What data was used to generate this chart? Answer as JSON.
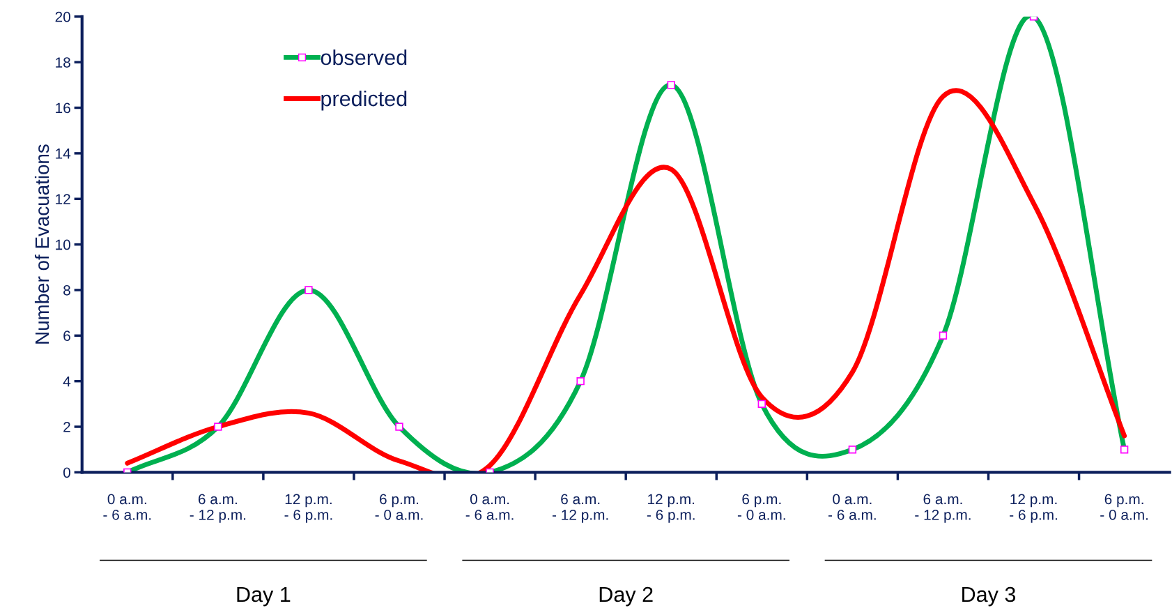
{
  "chart_data": {
    "type": "line",
    "ylabel": "Number of Evacuations",
    "categories": [
      "0 a.m.\n- 6 a.m.",
      "6 a.m.\n- 12 p.m.",
      "12 p.m.\n- 6 p.m.",
      "6 p.m.\n- 0 a.m.",
      "0 a.m.\n- 6 a.m.",
      "6 a.m.\n- 12 p.m.",
      "12 p.m.\n- 6 p.m.",
      "6 p.m.\n- 0 a.m.",
      "0 a.m.\n- 6 a.m.",
      "6 a.m.\n- 12 p.m.",
      "12 p.m.\n- 6 p.m.",
      "6 p.m.\n- 0 a.m."
    ],
    "series": [
      {
        "name": "observed",
        "color": "#00b050",
        "marker": "square",
        "values": [
          0,
          2,
          8,
          2,
          0,
          4,
          17,
          3,
          1,
          6,
          20,
          1
        ]
      },
      {
        "name": "predicted",
        "color": "#ff0000",
        "marker": "none",
        "values": [
          0.4,
          2.0,
          2.6,
          0.5,
          0.3,
          7.8,
          13.3,
          3.3,
          4.4,
          16.5,
          11.8,
          1.6
        ]
      }
    ],
    "ylim": [
      0,
      20
    ],
    "yticks": [
      0,
      2,
      4,
      6,
      8,
      10,
      12,
      14,
      16,
      18,
      20
    ],
    "grid": false,
    "legend": "top left",
    "line_style": "solid",
    "annotations": [
      "Day 1",
      "Day 2",
      "Day 3"
    ]
  }
}
